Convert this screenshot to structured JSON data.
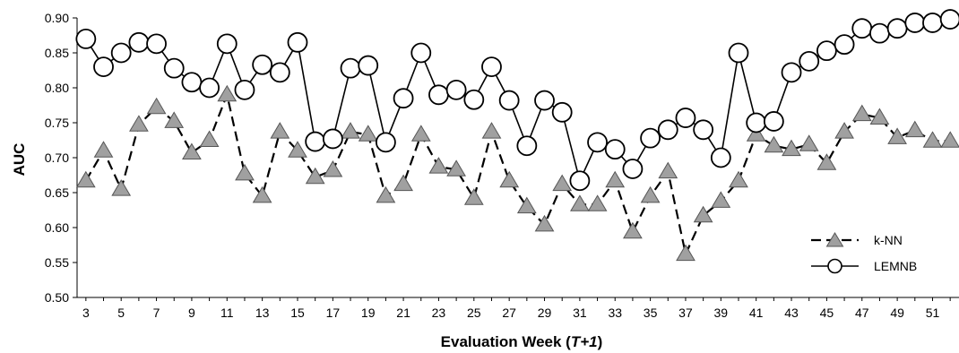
{
  "chart_data": {
    "type": "line",
    "ylabel": "AUC",
    "xlabel_prefix": "Evaluation Week (",
    "xlabel_italic": "T+1",
    "xlabel_suffix": ")",
    "ylim": [
      0.5,
      0.9
    ],
    "yticks": [
      "0.50",
      "0.55",
      "0.60",
      "0.65",
      "0.70",
      "0.75",
      "0.80",
      "0.85",
      "0.90"
    ],
    "x": [
      3,
      4,
      5,
      6,
      7,
      8,
      9,
      10,
      11,
      12,
      13,
      14,
      15,
      16,
      17,
      18,
      19,
      20,
      21,
      22,
      23,
      24,
      25,
      26,
      27,
      28,
      29,
      30,
      31,
      32,
      33,
      34,
      35,
      36,
      37,
      38,
      39,
      40,
      41,
      42,
      43,
      44,
      45,
      46,
      47,
      48,
      49,
      50,
      51,
      52
    ],
    "xticks": [
      "3",
      "5",
      "7",
      "9",
      "11",
      "13",
      "15",
      "17",
      "19",
      "21",
      "23",
      "25",
      "27",
      "29",
      "31",
      "33",
      "35",
      "37",
      "39",
      "41",
      "43",
      "45",
      "47",
      "49",
      "51"
    ],
    "grid": false,
    "legend_position": "bottom-right",
    "series": [
      {
        "name": "k-NN",
        "line_style": "dashed",
        "marker": "triangle",
        "color": "#000000",
        "marker_fill": "#a0a0a0",
        "values": [
          0.667,
          0.71,
          0.655,
          0.747,
          0.772,
          0.752,
          0.707,
          0.725,
          0.79,
          0.677,
          0.645,
          0.737,
          0.71,
          0.672,
          0.682,
          0.737,
          0.733,
          0.645,
          0.662,
          0.733,
          0.687,
          0.683,
          0.642,
          0.737,
          0.667,
          0.63,
          0.604,
          0.662,
          0.633,
          0.633,
          0.667,
          0.594,
          0.645,
          0.68,
          0.562,
          0.617,
          0.638,
          0.667,
          0.733,
          0.717,
          0.712,
          0.719,
          0.692,
          0.737,
          0.762,
          0.757,
          0.729,
          0.739,
          0.724,
          0.724
        ]
      },
      {
        "name": "LEMNB",
        "line_style": "solid",
        "marker": "circle",
        "color": "#000000",
        "marker_fill": "#ffffff",
        "values": [
          0.87,
          0.83,
          0.85,
          0.865,
          0.863,
          0.828,
          0.808,
          0.8,
          0.863,
          0.797,
          0.833,
          0.822,
          0.865,
          0.723,
          0.727,
          0.828,
          0.832,
          0.722,
          0.785,
          0.85,
          0.79,
          0.797,
          0.783,
          0.83,
          0.782,
          0.717,
          0.782,
          0.765,
          0.667,
          0.722,
          0.712,
          0.684,
          0.728,
          0.74,
          0.757,
          0.74,
          0.7,
          0.85,
          0.75,
          0.752,
          0.822,
          0.838,
          0.853,
          0.862,
          0.885,
          0.878,
          0.885,
          0.893,
          0.893,
          0.898
        ]
      }
    ]
  }
}
